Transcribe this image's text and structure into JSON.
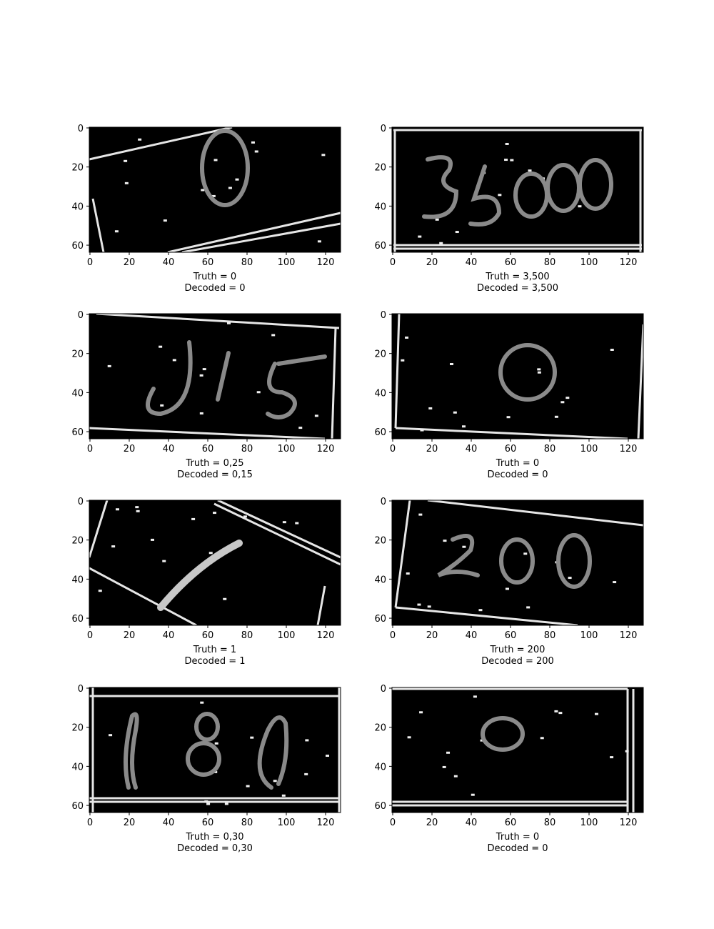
{
  "axes": {
    "x_ticks": [
      "0",
      "20",
      "40",
      "60",
      "80",
      "100",
      "120"
    ],
    "y_ticks": [
      "0",
      "20",
      "40",
      "60"
    ]
  },
  "truth_prefix": "Truth = ",
  "decoded_prefix": "Decoded = ",
  "panels": [
    {
      "truth": "0",
      "decoded": "0",
      "glyph": "0"
    },
    {
      "truth": "3,500",
      "decoded": "3,500",
      "glyph": "3500"
    },
    {
      "truth": "0,25",
      "decoded": "0,15",
      "glyph": "0,15"
    },
    {
      "truth": "0",
      "decoded": "0",
      "glyph": "0"
    },
    {
      "truth": "1",
      "decoded": "1",
      "glyph": "1"
    },
    {
      "truth": "200",
      "decoded": "200",
      "glyph": "200"
    },
    {
      "truth": "0,30",
      "decoded": "0,30",
      "glyph": "0,30"
    },
    {
      "truth": "0",
      "decoded": "0",
      "glyph": "0"
    }
  ]
}
